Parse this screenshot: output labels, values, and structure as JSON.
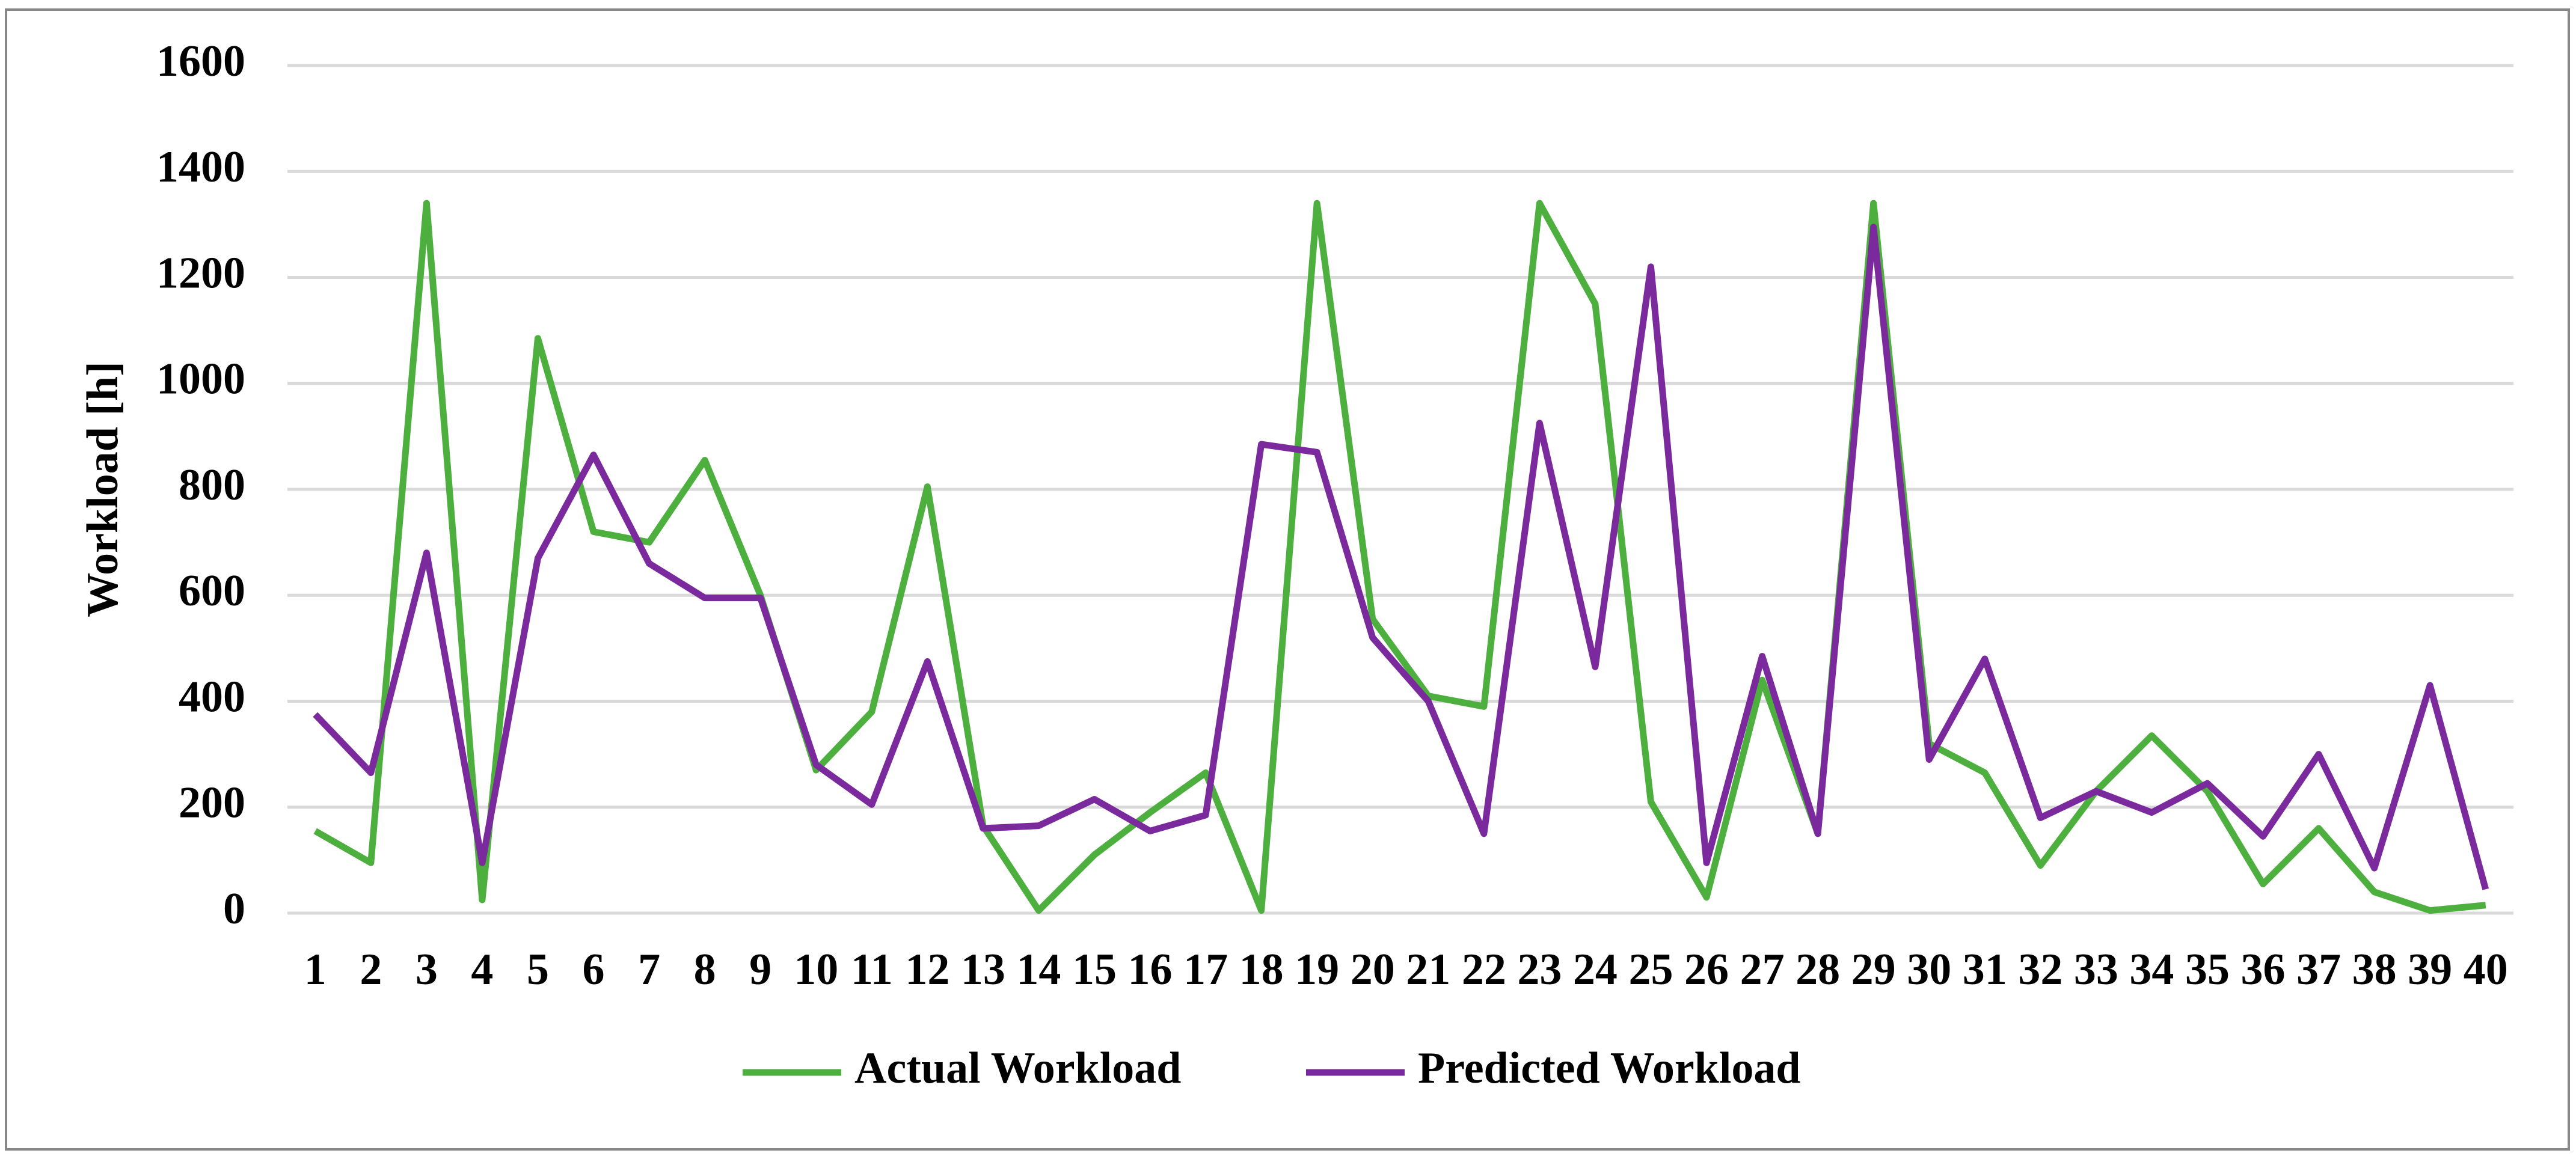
{
  "chart_data": {
    "type": "line",
    "y_label": "Workload [h]",
    "categories": [
      "1",
      "2",
      "3",
      "4",
      "5",
      "6",
      "7",
      "8",
      "9",
      "10",
      "11",
      "12",
      "13",
      "14",
      "15",
      "16",
      "17",
      "18",
      "19",
      "20",
      "21",
      "22",
      "23",
      "24",
      "25",
      "26",
      "27",
      "28",
      "29",
      "30",
      "31",
      "32",
      "33",
      "34",
      "35",
      "36",
      "37",
      "38",
      "39",
      "40"
    ],
    "series": [
      {
        "name": "Actual Workload",
        "color": "#4caf3e",
        "values": [
          155,
          95,
          1340,
          25,
          1085,
          720,
          700,
          855,
          600,
          270,
          380,
          805,
          165,
          5,
          110,
          190,
          265,
          5,
          1340,
          555,
          410,
          390,
          1340,
          1150,
          210,
          30,
          440,
          150,
          1340,
          320,
          265,
          90,
          230,
          335,
          230,
          55,
          160,
          40,
          5,
          15
        ]
      },
      {
        "name": "Predicted Workload",
        "color": "#7b2a9e",
        "values": [
          375,
          265,
          680,
          95,
          670,
          865,
          660,
          595,
          595,
          280,
          205,
          475,
          160,
          165,
          215,
          155,
          185,
          885,
          870,
          520,
          400,
          150,
          925,
          465,
          1220,
          95,
          485,
          150,
          1295,
          290,
          480,
          180,
          230,
          190,
          245,
          145,
          300,
          85,
          430,
          45
        ]
      }
    ],
    "ylim": [
      0,
      1600
    ],
    "yticks": [
      0,
      200,
      400,
      600,
      800,
      1000,
      1200,
      1400,
      1600
    ],
    "grid": true,
    "legend": "bottom"
  }
}
